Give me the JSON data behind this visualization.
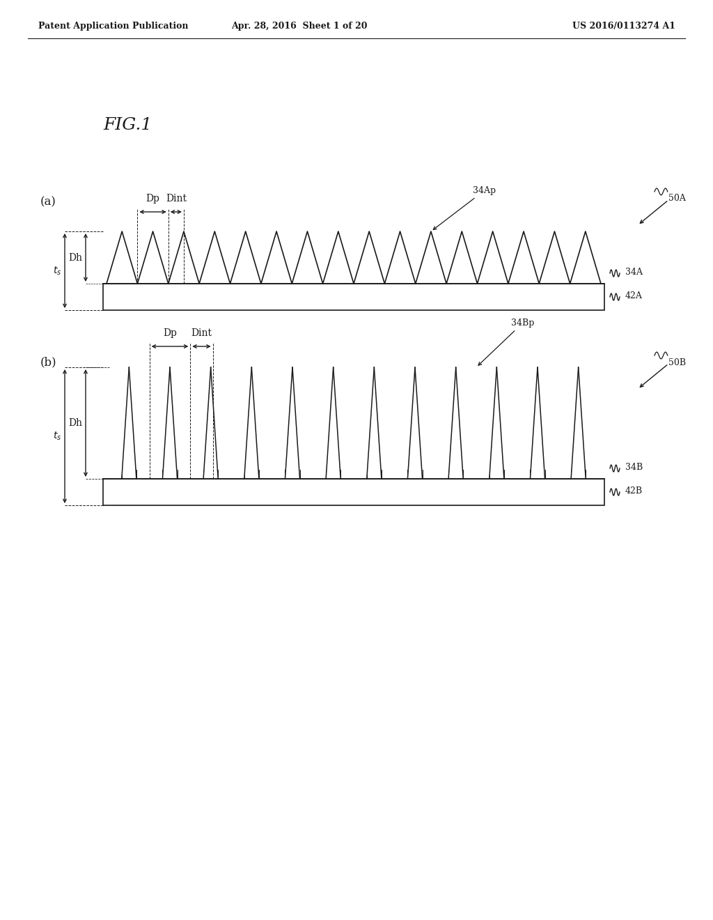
{
  "bg_color": "#ffffff",
  "header_left": "Patent Application Publication",
  "header_mid": "Apr. 28, 2016  Sheet 1 of 20",
  "header_right": "US 2016/0113274 A1",
  "fig_label": "FIG.1",
  "panel_a_label": "(a)",
  "panel_b_label": "(b)",
  "line_color": "#1a1a1a"
}
